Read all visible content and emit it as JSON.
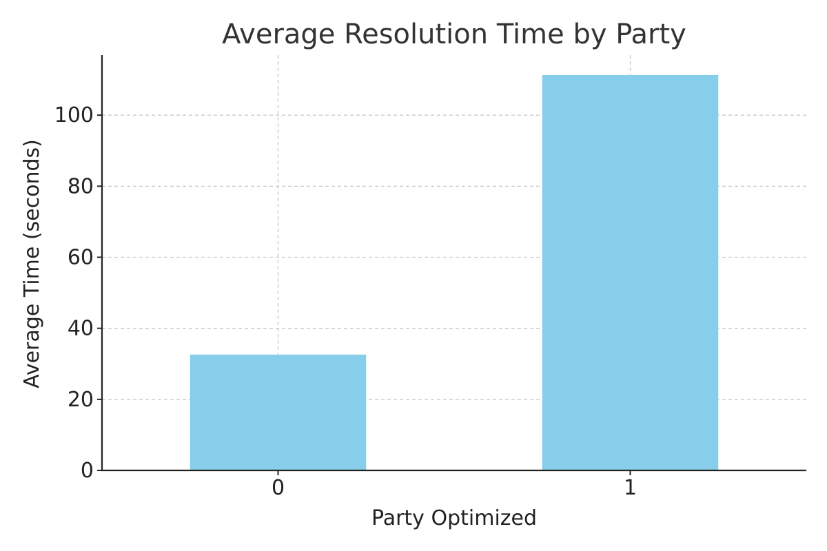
{
  "chart_data": {
    "type": "bar",
    "title": "Average Resolution Time by Party",
    "xlabel": "Party Optimized",
    "ylabel": "Average Time (seconds)",
    "categories": [
      "0",
      "1"
    ],
    "values": [
      32.6,
      111.3
    ],
    "ylim": [
      0,
      116.9
    ],
    "yticks": [
      0,
      20,
      40,
      60,
      80,
      100
    ],
    "grid": true,
    "colors": {
      "bar": "#87ceeb"
    }
  }
}
